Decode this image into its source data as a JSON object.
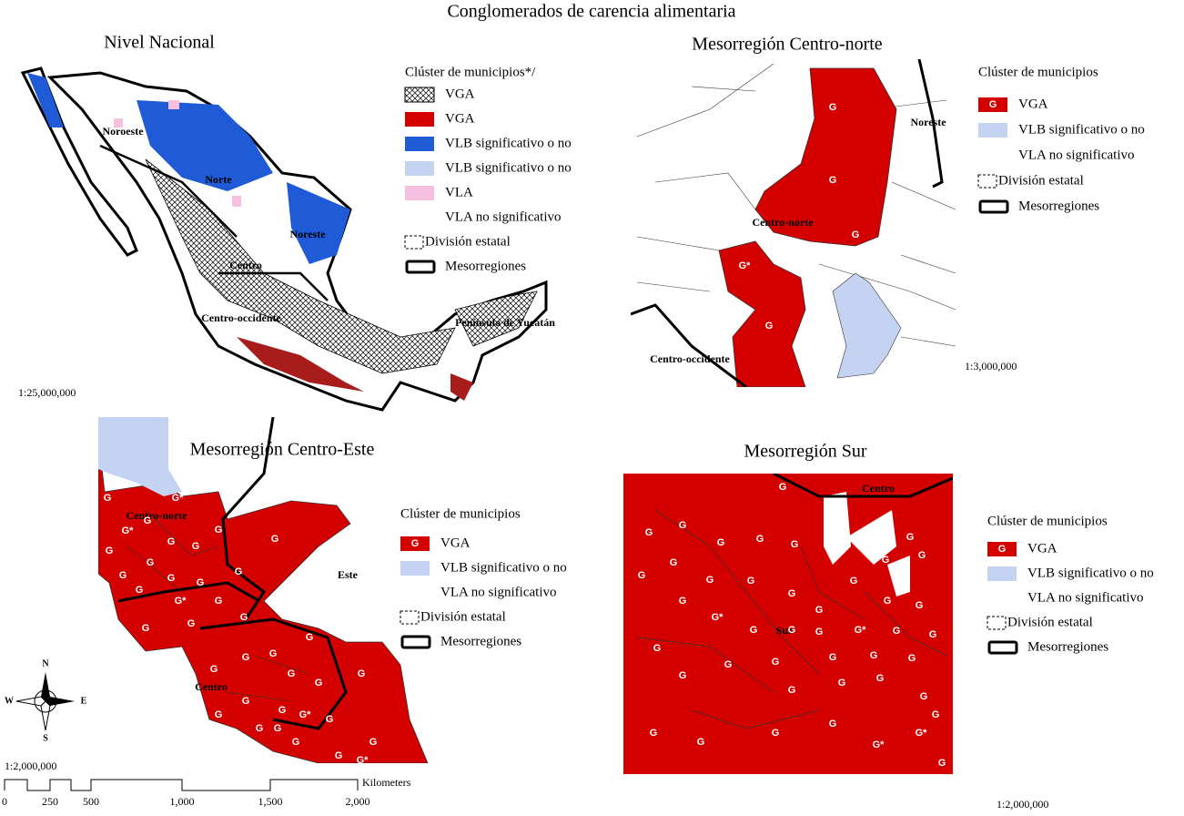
{
  "title": "Conglomerados de carencia alimentaria",
  "panels": [
    {
      "title": "Nivel Nacional",
      "legend_title": "Clúster de municipios*/",
      "legend": [
        {
          "label": "VGA",
          "style": "hatch"
        },
        {
          "label": "VGA",
          "style": "red"
        },
        {
          "label": "VLB significativo o no",
          "style": "blue"
        },
        {
          "label": "VLB significativo o no",
          "style": "lightblue"
        },
        {
          "label": "VLA",
          "style": "pink"
        },
        {
          "label": "VLA no significativo",
          "style": "none"
        },
        {
          "label": "División estatal",
          "style": "dashed"
        },
        {
          "label": "Mesorregiones",
          "style": "thick"
        }
      ],
      "regions": [
        "Noroeste",
        "Norte",
        "Noreste",
        "Centro",
        "Centro-occidente",
        "Península de Yucatán"
      ],
      "scale": "1:25,000,000",
      "markers": []
    },
    {
      "title": "Mesorregión Centro-norte",
      "legend_title": "Clúster de municipios",
      "legend": [
        {
          "label": "VGA",
          "style": "red",
          "symbol": "G"
        },
        {
          "label": "VLB significativo o no",
          "style": "lightblue"
        },
        {
          "label": "VLA no significativo",
          "style": "none"
        },
        {
          "label": "División estatal",
          "style": "dashed"
        },
        {
          "label": "Mesorregiones",
          "style": "thick"
        }
      ],
      "regions": [
        "Noreste",
        "Centro-norte",
        "Centro-occidente"
      ],
      "scale": "1:3,000,000",
      "markers": [
        "G",
        "G",
        "G",
        "G*",
        "G"
      ]
    },
    {
      "title": "Mesorregión Centro-Este",
      "legend_title": "Clúster de municipios",
      "legend": [
        {
          "label": "VGA",
          "style": "red",
          "symbol": "G"
        },
        {
          "label": "VLB significativo o no",
          "style": "lightblue"
        },
        {
          "label": "VLA no significativo",
          "style": "none"
        },
        {
          "label": "División estatal",
          "style": "dashed"
        },
        {
          "label": "Mesorregiones",
          "style": "thick"
        }
      ],
      "regions": [
        "Centro-norte",
        "Este",
        "Centro"
      ],
      "markers": [
        "G",
        "G*",
        "G*",
        "G",
        "G",
        "G",
        "G",
        "G",
        "G",
        "G",
        "G",
        "G",
        "G",
        "G",
        "G",
        "G*",
        "G",
        "G",
        "G",
        "G",
        "G",
        "G",
        "G",
        "G",
        "G",
        "G",
        "G",
        "G",
        "G",
        "G",
        "G*",
        "G",
        "G",
        "G",
        "G",
        "G",
        "G",
        "G*"
      ]
    },
    {
      "title": "Mesorregión Sur",
      "legend_title": "Clúster de municipios",
      "legend": [
        {
          "label": "VGA",
          "style": "red",
          "symbol": "G"
        },
        {
          "label": "VLB significativo o no",
          "style": "lightblue"
        },
        {
          "label": "VLA no significativo",
          "style": "none"
        },
        {
          "label": "División estatal",
          "style": "dashed"
        },
        {
          "label": "Mesorregiones",
          "style": "thick"
        }
      ],
      "regions": [
        "Centro",
        "Sur"
      ],
      "scale": "1:2,000,000",
      "markers": [
        "G",
        "G",
        "G",
        "G",
        "G",
        "G",
        "G",
        "G",
        "G",
        "G",
        "G",
        "G",
        "G",
        "G",
        "G",
        "G",
        "G",
        "G*",
        "G",
        "G",
        "G",
        "G",
        "G",
        "G",
        "G*",
        "G",
        "G",
        "G",
        "G",
        "G",
        "G",
        "G",
        "G",
        "G",
        "G",
        "G",
        "G",
        "G",
        "G",
        "G",
        "G",
        "G",
        "G*",
        "G*",
        "G",
        "G"
      ]
    }
  ],
  "compass": {
    "n": "N",
    "s": "S",
    "e": "E",
    "w": "W"
  },
  "scale_bar": {
    "scale": "1:2,000,000",
    "ticks": [
      "0",
      "250",
      "500",
      "1,000",
      "1,500",
      "2,000"
    ],
    "unit": "Kilometers"
  }
}
